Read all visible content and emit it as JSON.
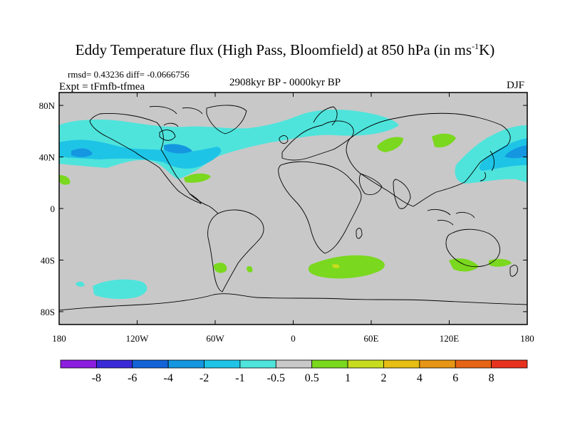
{
  "title": {
    "main": "Eddy Temperature flux (High Pass, Bloomfield) at 850 hPa (in ms",
    "sup": "-1",
    "end": "K)"
  },
  "stats": "rmsd= 0.43236 diff= -0.0666756",
  "expt": "Expt = tFmfb-tfmea",
  "period": "2908kyr BP - 0000kyr BP",
  "season": "DJF",
  "axes": {
    "lat_labels": [
      "80N",
      "40N",
      "0",
      "40S",
      "80S"
    ],
    "lon_labels": [
      "180",
      "120W",
      "60W",
      "0",
      "60E",
      "120E",
      "180"
    ]
  },
  "colorbar": {
    "colors": [
      "#8b1fe0",
      "#3a2ad8",
      "#1464d8",
      "#1496e0",
      "#1ec4e6",
      "#4ee4dc",
      "#c8c8c8",
      "#7ad81e",
      "#c8dc1e",
      "#e6be14",
      "#e69614",
      "#e66414",
      "#e6321e"
    ],
    "labels": [
      "-8",
      "-6",
      "-4",
      "-2",
      "-1",
      "-0.5",
      "0.5",
      "1",
      "2",
      "4",
      "6",
      "8"
    ]
  },
  "colors": {
    "land_sea_bg": "#c8c8c8",
    "negative_light": "#4ee4dc",
    "negative_mid": "#1ec4e6",
    "negative_strong": "#1496e0",
    "positive_light": "#7ad81e",
    "positive_mid": "#c8dc1e"
  }
}
